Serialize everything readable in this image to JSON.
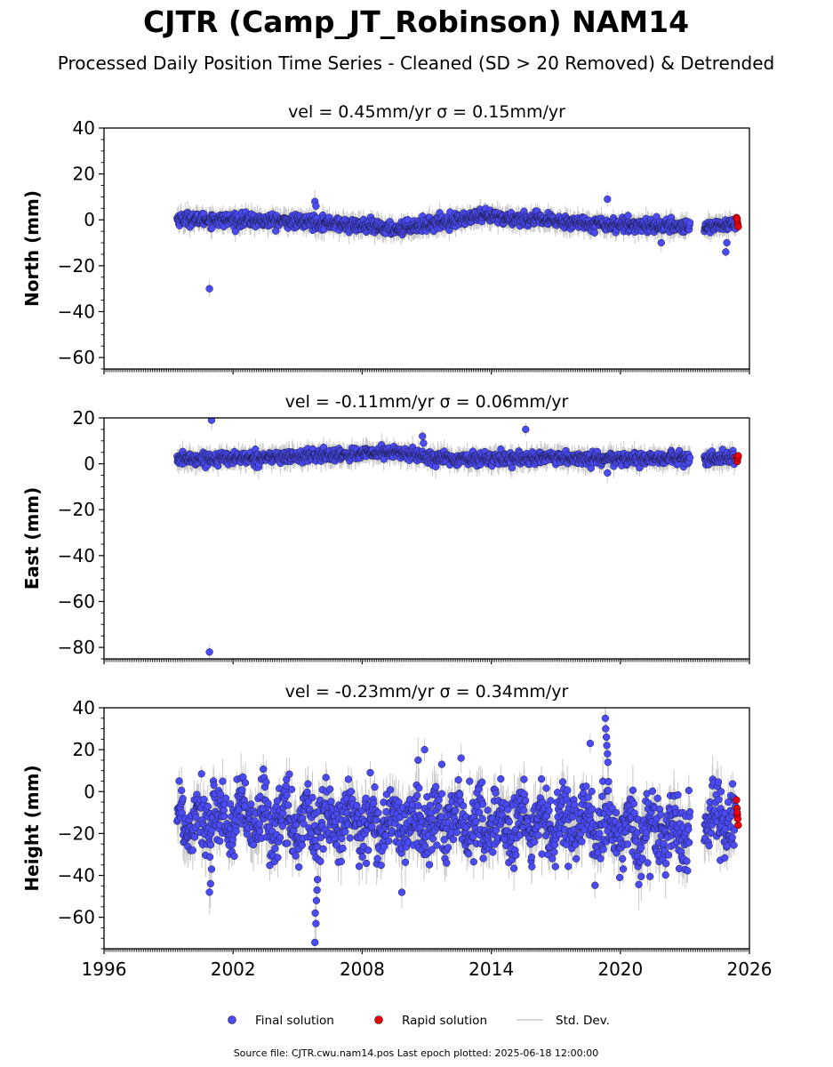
{
  "title": "CJTR (Camp_JT_Robinson) NAM14",
  "subtitle": "Processed Daily Position Time Series - Cleaned (SD > 20 Removed) & Detrended",
  "footer": "Source file: CJTR.cwu.nam14.pos  Last epoch plotted: 2025-06-18 12:00:00",
  "legend": {
    "final": "Final solution",
    "rapid": "Rapid solution",
    "std": "Std. Dev."
  },
  "colors": {
    "final": "#4b4bf5",
    "rapid": "#e8000b",
    "std": "#c8c8c8"
  },
  "chart_data": [
    {
      "type": "scatter",
      "title": "vel = 0.45mm/yr   σ = 0.15mm/yr",
      "ylabel": "North (mm)",
      "xlim": [
        1996,
        2026
      ],
      "ylim": [
        -65,
        40
      ],
      "yticks": [
        40,
        20,
        0,
        -20,
        -40,
        -60
      ],
      "xtick_labels": [
        "1996",
        "2002",
        "2008",
        "2014",
        "2020",
        "2026"
      ],
      "baseline": [
        [
          1999.4,
          0.5
        ],
        [
          2005.9,
          -1
        ],
        [
          2009.5,
          -4
        ],
        [
          2013.5,
          1.5
        ],
        [
          2019.5,
          -2
        ],
        [
          2023.5,
          -3
        ],
        [
          2025.45,
          -2
        ]
      ],
      "noise": 1.4,
      "err": 3,
      "outliers": [
        [
          2000.9,
          -30
        ],
        [
          2005.8,
          8
        ],
        [
          2005.85,
          6
        ],
        [
          2019.4,
          9
        ],
        [
          2021.9,
          -10
        ],
        [
          2024.9,
          -14
        ],
        [
          2024.95,
          -10
        ]
      ],
      "rapid": [
        [
          2025.4,
          1
        ],
        [
          2025.42,
          0
        ],
        [
          2025.44,
          -1
        ],
        [
          2025.46,
          -2
        ],
        [
          2025.48,
          -3
        ],
        [
          2025.43,
          0.5
        ]
      ]
    },
    {
      "type": "scatter",
      "title": "vel = -0.11mm/yr   σ = 0.06mm/yr",
      "ylabel": "East (mm)",
      "xlim": [
        1996,
        2026
      ],
      "ylim": [
        -85,
        20
      ],
      "yticks": [
        20,
        0,
        -20,
        -40,
        -60,
        -80
      ],
      "xtick_labels": [
        "1996",
        "2002",
        "2008",
        "2014",
        "2020",
        "2026"
      ],
      "baseline": [
        [
          1999.4,
          2
        ],
        [
          2004.5,
          3
        ],
        [
          2009.5,
          5
        ],
        [
          2012.0,
          2
        ],
        [
          2016.0,
          2.5
        ],
        [
          2020.0,
          2
        ],
        [
          2025.45,
          2.5
        ]
      ],
      "noise": 1.3,
      "err": 3,
      "outliers": [
        [
          2000.9,
          -82
        ],
        [
          2001.0,
          19
        ],
        [
          2010.8,
          12
        ],
        [
          2010.85,
          9
        ],
        [
          2015.6,
          15
        ],
        [
          2019.4,
          -4
        ]
      ],
      "rapid": [
        [
          2025.4,
          3
        ],
        [
          2025.42,
          2
        ],
        [
          2025.44,
          1
        ],
        [
          2025.46,
          2.5
        ],
        [
          2025.48,
          3.5
        ]
      ]
    },
    {
      "type": "scatter",
      "title": "vel = -0.23mm/yr   σ = 0.34mm/yr",
      "ylabel": "Height (mm)",
      "xlim": [
        1996,
        2026
      ],
      "ylim": [
        -75,
        40
      ],
      "yticks": [
        40,
        20,
        0,
        -20,
        -40,
        -60
      ],
      "xtick_labels": [
        "1996",
        "2002",
        "2008",
        "2014",
        "2020",
        "2026"
      ],
      "baseline": [
        [
          1999.4,
          -12
        ],
        [
          2005.9,
          -15
        ],
        [
          2012.0,
          -15
        ],
        [
          2018.0,
          -16
        ],
        [
          2021.5,
          -20
        ],
        [
          2025.45,
          -14
        ]
      ],
      "noise": 8,
      "err": 7,
      "seasonal": 7,
      "outliers": [
        [
          2005.8,
          -72
        ],
        [
          2005.85,
          -63
        ],
        [
          2005.82,
          -58
        ],
        [
          2005.87,
          -52
        ],
        [
          2005.9,
          -47
        ],
        [
          2005.92,
          -42
        ],
        [
          2019.3,
          35
        ],
        [
          2019.32,
          30
        ],
        [
          2019.35,
          26
        ],
        [
          2019.37,
          22
        ],
        [
          2019.4,
          18
        ],
        [
          2019.42,
          14
        ],
        [
          2018.6,
          23
        ],
        [
          2010.6,
          15
        ],
        [
          2010.9,
          20
        ],
        [
          2011.7,
          13
        ],
        [
          2012.6,
          16
        ],
        [
          2000.9,
          -48
        ],
        [
          2000.95,
          -44
        ],
        [
          2001.0,
          -37
        ]
      ],
      "rapid": [
        [
          2025.4,
          -4
        ],
        [
          2025.42,
          -8
        ],
        [
          2025.44,
          -11
        ],
        [
          2025.46,
          -13
        ],
        [
          2025.48,
          -16
        ],
        [
          2025.43,
          -10
        ]
      ]
    }
  ]
}
